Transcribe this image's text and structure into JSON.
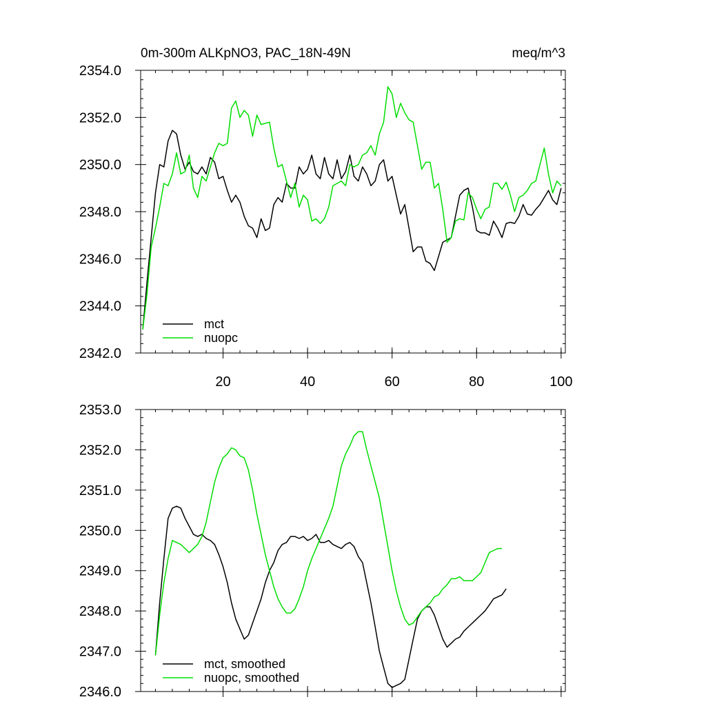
{
  "chart_data": [
    {
      "type": "line",
      "title_left": "0m-300m ALKpNO3, PAC_18N-49N",
      "title_right": "meq/m^3",
      "xlim": [
        0.5,
        101
      ],
      "ylim": [
        2342.0,
        2354.0
      ],
      "x_ticks": [
        20,
        40,
        60,
        80,
        100
      ],
      "x_tick_labels": [
        "20",
        "40",
        "60",
        "80",
        "100"
      ],
      "y_ticks": [
        2342.0,
        2344.0,
        2346.0,
        2348.0,
        2350.0,
        2352.0,
        2354.0
      ],
      "y_tick_labels": [
        "2342.0",
        "2344.0",
        "2346.0",
        "2348.0",
        "2350.0",
        "2352.0",
        "2354.0"
      ],
      "x_start": 1,
      "series": [
        {
          "name": "mct",
          "color": "#000000",
          "values": [
            2343.0,
            2345.0,
            2346.9,
            2348.8,
            2350.0,
            2349.9,
            2351.0,
            2351.45,
            2351.3,
            2350.4,
            2349.8,
            2350.1,
            2349.7,
            2349.6,
            2349.9,
            2349.6,
            2350.3,
            2350.1,
            2349.4,
            2349.5,
            2348.9,
            2348.4,
            2348.7,
            2348.4,
            2347.8,
            2347.4,
            2347.3,
            2346.9,
            2347.7,
            2347.2,
            2347.3,
            2348.3,
            2348.6,
            2348.4,
            2349.2,
            2349.0,
            2349.0,
            2349.9,
            2349.6,
            2349.8,
            2350.4,
            2349.6,
            2349.4,
            2350.3,
            2349.6,
            2349.4,
            2350.2,
            2349.4,
            2349.7,
            2350.4,
            2349.5,
            2349.3,
            2349.9,
            2349.6,
            2349.1,
            2349.3,
            2350.0,
            2350.2,
            2349.3,
            2349.5,
            2348.7,
            2347.9,
            2348.3,
            2347.3,
            2346.3,
            2346.5,
            2346.5,
            2345.9,
            2345.8,
            2345.5,
            2346.1,
            2346.7,
            2346.8,
            2346.9,
            2347.8,
            2348.7,
            2348.9,
            2349.0,
            2348.2,
            2347.2,
            2347.1,
            2347.1,
            2347.0,
            2347.6,
            2347.3,
            2346.9,
            2347.5,
            2347.55,
            2347.5,
            2347.8,
            2348.3,
            2347.9,
            2347.85,
            2348.1,
            2348.3,
            2348.6,
            2348.9,
            2348.5,
            2348.3,
            2349.0
          ]
        },
        {
          "name": "nuopc",
          "color": "#00dd00",
          "values": [
            2343.0,
            2344.5,
            2346.5,
            2347.3,
            2348.2,
            2349.2,
            2349.1,
            2349.6,
            2350.5,
            2349.6,
            2349.7,
            2350.4,
            2349.0,
            2348.6,
            2349.5,
            2349.3,
            2349.9,
            2350.5,
            2350.9,
            2350.8,
            2350.9,
            2352.4,
            2352.7,
            2352.0,
            2352.3,
            2352.1,
            2351.2,
            2352.1,
            2351.7,
            2351.75,
            2351.8,
            2350.7,
            2349.9,
            2350.0,
            2349.3,
            2348.6,
            2349.2,
            2348.2,
            2348.7,
            2348.5,
            2347.6,
            2347.7,
            2347.5,
            2347.7,
            2348.2,
            2349.1,
            2349.2,
            2349.3,
            2349.1,
            2350.0,
            2349.9,
            2350.0,
            2350.4,
            2350.5,
            2350.8,
            2350.4,
            2351.3,
            2351.8,
            2353.3,
            2353.0,
            2352.0,
            2352.6,
            2352.2,
            2351.9,
            2351.8,
            2350.8,
            2349.8,
            2350.1,
            2350.1,
            2349.0,
            2349.2,
            2348.1,
            2346.7,
            2346.9,
            2347.6,
            2347.7,
            2347.65,
            2348.8,
            2348.6,
            2348.1,
            2347.7,
            2348.1,
            2348.2,
            2349.2,
            2349.2,
            2348.95,
            2349.25,
            2348.7,
            2348.0,
            2348.6,
            2348.7,
            2348.9,
            2349.2,
            2349.3,
            2350.0,
            2350.7,
            2349.6,
            2348.8,
            2349.3,
            2349.1
          ]
        }
      ],
      "legend_position": "bottom-left"
    },
    {
      "type": "line",
      "xlim": [
        0.5,
        101
      ],
      "ylim": [
        2346.0,
        2353.0
      ],
      "x_ticks": [
        20,
        40,
        60,
        80,
        100
      ],
      "x_tick_labels": [],
      "y_ticks": [
        2346.0,
        2347.0,
        2348.0,
        2349.0,
        2350.0,
        2351.0,
        2352.0,
        2353.0
      ],
      "y_tick_labels": [
        "2346.0",
        "2347.0",
        "2348.0",
        "2349.0",
        "2350.0",
        "2351.0",
        "2352.0",
        "2353.0"
      ],
      "x_start": 4,
      "series": [
        {
          "name": "mct, smoothed",
          "color": "#000000",
          "values": [
            2346.9,
            2348.2,
            2349.3,
            2350.3,
            2350.55,
            2350.6,
            2350.55,
            2350.3,
            2350.1,
            2349.9,
            2349.85,
            2349.9,
            2349.8,
            2349.75,
            2349.65,
            2349.4,
            2349.1,
            2348.7,
            2348.2,
            2347.8,
            2347.55,
            2347.3,
            2347.4,
            2347.7,
            2348.0,
            2348.3,
            2348.7,
            2349.0,
            2349.2,
            2349.5,
            2349.65,
            2349.7,
            2349.85,
            2349.85,
            2349.8,
            2349.85,
            2349.75,
            2349.8,
            2349.9,
            2349.7,
            2349.7,
            2349.75,
            2349.65,
            2349.6,
            2349.55,
            2349.65,
            2349.7,
            2349.6,
            2349.35,
            2349.2,
            2348.7,
            2348.2,
            2347.6,
            2347.0,
            2346.6,
            2346.2,
            2346.1,
            2346.15,
            2346.2,
            2346.3,
            2346.8,
            2347.3,
            2347.8,
            2348.0,
            2348.1,
            2348.1,
            2347.9,
            2347.6,
            2347.3,
            2347.1,
            2347.2,
            2347.3,
            2347.35,
            2347.5,
            2347.6,
            2347.7,
            2347.8,
            2347.9,
            2348.0,
            2348.15,
            2348.3,
            2348.35,
            2348.4,
            2348.55
          ]
        },
        {
          "name": "nuopc, smoothed",
          "color": "#00dd00",
          "values": [
            2346.9,
            2347.9,
            2348.7,
            2349.3,
            2349.75,
            2349.7,
            2349.65,
            2349.55,
            2349.45,
            2349.55,
            2349.65,
            2349.85,
            2350.2,
            2350.7,
            2351.2,
            2351.55,
            2351.8,
            2351.9,
            2352.05,
            2352.0,
            2351.85,
            2351.8,
            2351.5,
            2351.0,
            2350.4,
            2349.9,
            2349.4,
            2349.0,
            2348.6,
            2348.3,
            2348.1,
            2347.95,
            2347.95,
            2348.05,
            2348.3,
            2348.6,
            2349.0,
            2349.3,
            2349.55,
            2349.8,
            2350.05,
            2350.3,
            2350.6,
            2351.1,
            2351.6,
            2351.9,
            2352.1,
            2352.35,
            2352.45,
            2352.45,
            2352.0,
            2351.6,
            2351.2,
            2350.8,
            2350.2,
            2349.6,
            2349.0,
            2348.5,
            2348.1,
            2347.8,
            2347.65,
            2347.7,
            2347.85,
            2348.0,
            2348.1,
            2348.2,
            2348.35,
            2348.4,
            2348.55,
            2348.65,
            2348.8,
            2348.8,
            2348.85,
            2348.75,
            2348.75,
            2348.75,
            2348.85,
            2348.95,
            2349.2,
            2349.45,
            2349.5,
            2349.55,
            2349.55
          ]
        }
      ],
      "legend_position": "bottom-left"
    }
  ]
}
